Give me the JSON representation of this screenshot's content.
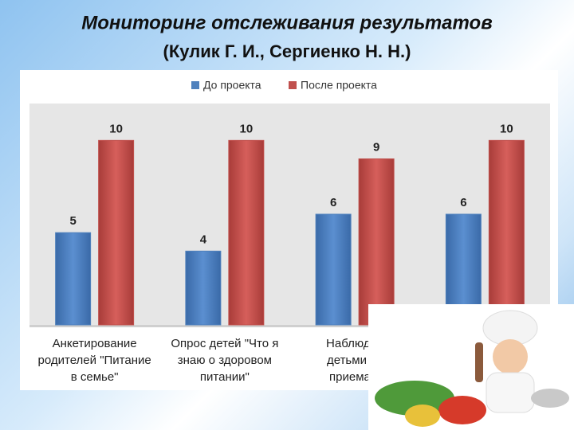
{
  "chart_data": {
    "type": "bar",
    "title": "Мониторинг отслеживания результатов",
    "subtitle": "(Кулик Г. И., Сергиенко Н. Н.)",
    "categories": [
      [
        "Анкетирование",
        "родителей \"Питание",
        "в семье\""
      ],
      [
        "Опрос детей \"Что я",
        "знаю о здоровом",
        "питании\""
      ],
      [
        "Наблюден",
        "детьми во",
        "приема п"
      ],
      null
    ],
    "series": [
      {
        "name": "До проекта",
        "color": "#4f81bd",
        "values": [
          5,
          4,
          6,
          6
        ]
      },
      {
        "name": "После проекта",
        "color": "#c0504d",
        "values": [
          10,
          10,
          9,
          10
        ]
      }
    ],
    "ylim": [
      0,
      12
    ]
  }
}
